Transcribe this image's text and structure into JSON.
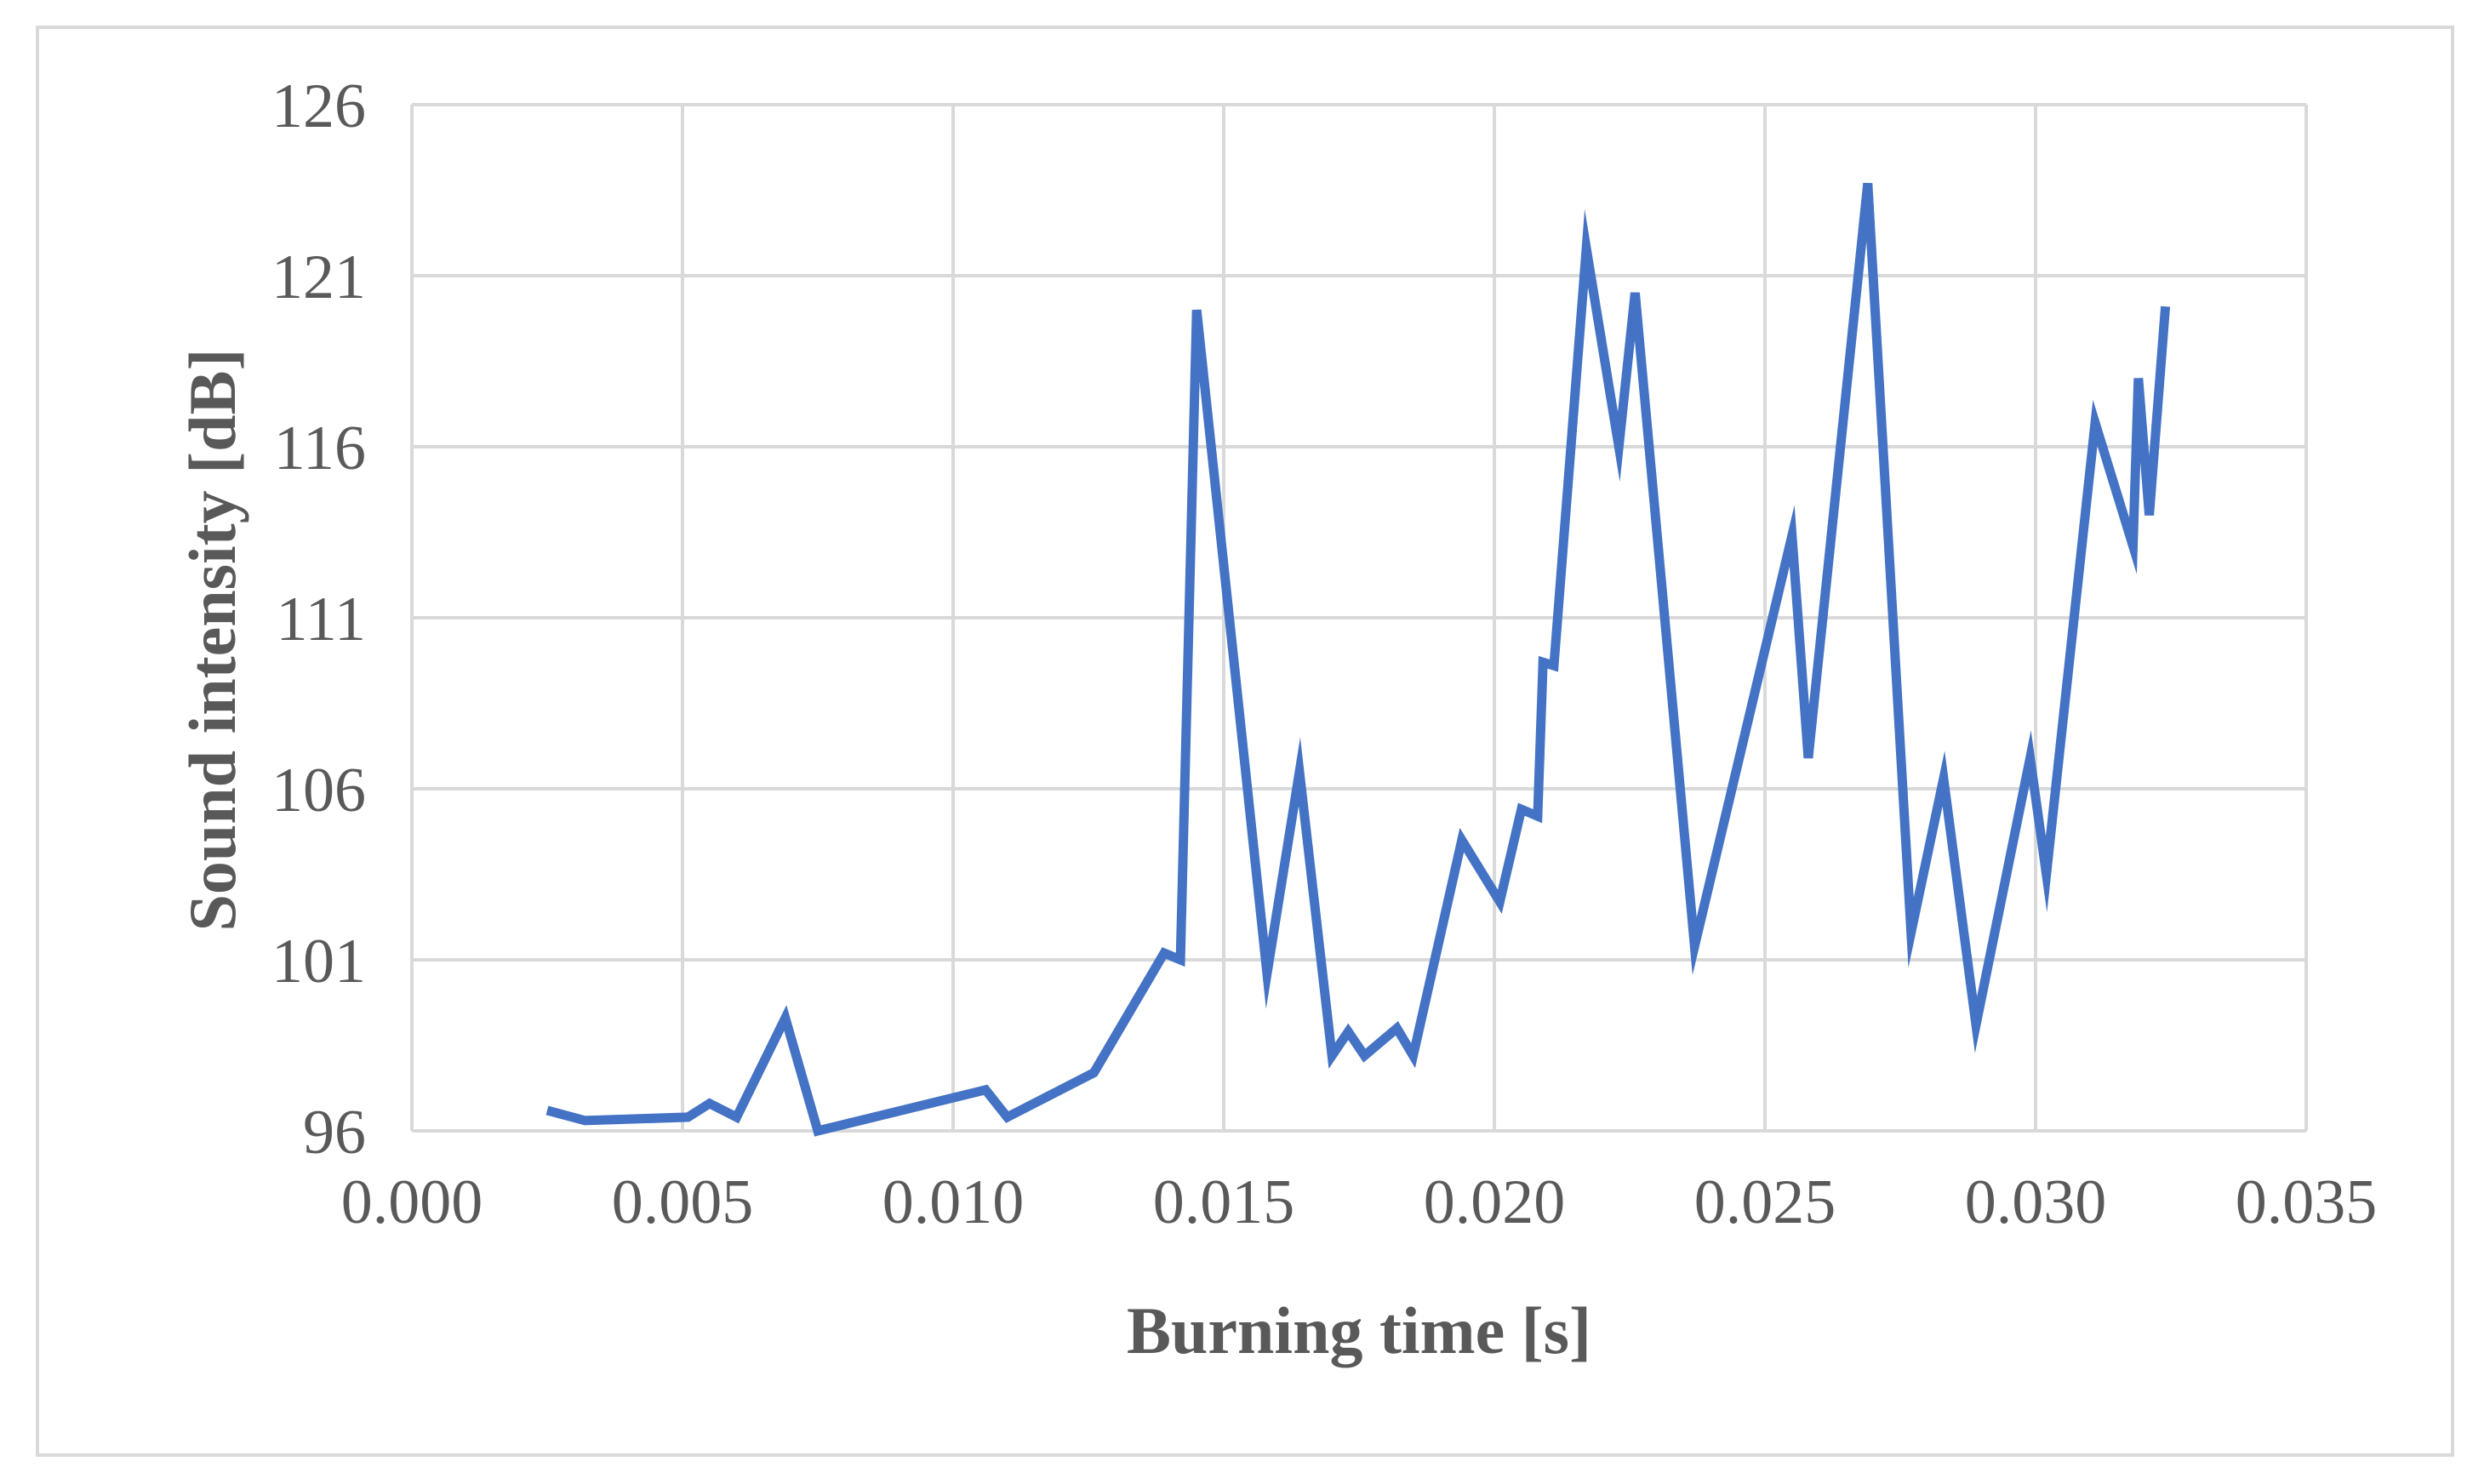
{
  "chart_data": {
    "type": "line",
    "xlabel": "Burning time [s]",
    "ylabel": "Sound intensity [dB]",
    "xlim": [
      0.0,
      0.035
    ],
    "ylim": [
      96,
      126
    ],
    "x_ticks": [
      "0.000",
      "0.005",
      "0.010",
      "0.015",
      "0.020",
      "0.025",
      "0.030",
      "0.035"
    ],
    "y_ticks": [
      "96",
      "101",
      "106",
      "111",
      "116",
      "121",
      "126"
    ],
    "grid": true,
    "legend": "none",
    "series": [
      {
        "color": "#4472c4",
        "points": [
          [
            0.0025,
            96.6
          ],
          [
            0.0032,
            96.3
          ],
          [
            0.0051,
            96.4
          ],
          [
            0.0055,
            96.8
          ],
          [
            0.006,
            96.4
          ],
          [
            0.0069,
            99.3
          ],
          [
            0.0075,
            96.0
          ],
          [
            0.0106,
            97.2
          ],
          [
            0.011,
            96.4
          ],
          [
            0.0126,
            97.7
          ],
          [
            0.0139,
            101.2
          ],
          [
            0.0142,
            101.0
          ],
          [
            0.0145,
            120.0
          ],
          [
            0.0158,
            100.6
          ],
          [
            0.0164,
            106.5
          ],
          [
            0.017,
            98.2
          ],
          [
            0.0173,
            98.9
          ],
          [
            0.0176,
            98.2
          ],
          [
            0.0182,
            99.0
          ],
          [
            0.0185,
            98.2
          ],
          [
            0.0194,
            104.5
          ],
          [
            0.0201,
            102.7
          ],
          [
            0.0205,
            105.4
          ],
          [
            0.0208,
            105.2
          ],
          [
            0.0209,
            109.7
          ],
          [
            0.0211,
            109.6
          ],
          [
            0.0217,
            121.8
          ],
          [
            0.0223,
            116.0
          ],
          [
            0.0226,
            120.5
          ],
          [
            0.0237,
            101.4
          ],
          [
            0.0255,
            113.4
          ],
          [
            0.0258,
            106.9
          ],
          [
            0.0269,
            123.7
          ],
          [
            0.0277,
            101.8
          ],
          [
            0.0283,
            106.3
          ],
          [
            0.0289,
            99.1
          ],
          [
            0.0299,
            106.9
          ],
          [
            0.0302,
            103.5
          ],
          [
            0.0311,
            116.7
          ],
          [
            0.0318,
            113.1
          ],
          [
            0.0319,
            118.0
          ],
          [
            0.0321,
            114.0
          ],
          [
            0.0324,
            120.1
          ]
        ]
      }
    ]
  }
}
